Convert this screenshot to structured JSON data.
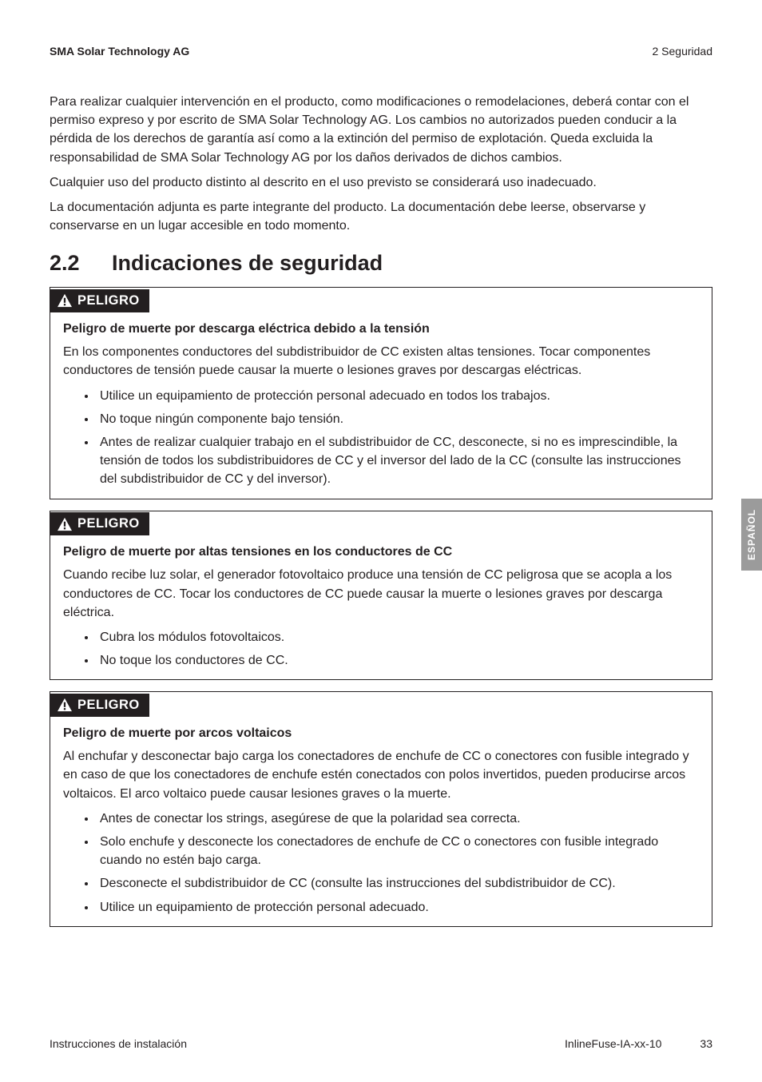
{
  "header": {
    "left": "SMA Solar Technology AG",
    "right": "2  Seguridad"
  },
  "intro": {
    "p1": "Para realizar cualquier intervención en el producto, como modificaciones o remodelaciones, deberá contar con el permiso expreso y por escrito de SMA Solar Technology AG. Los cambios no autorizados pueden conducir a la pérdida de los derechos de garantía así como a la extinción del permiso de explotación. Queda excluida la responsabilidad de SMA Solar Technology AG por los daños derivados de dichos cambios.",
    "p2": "Cualquier uso del producto distinto al descrito en el uso previsto se considerará uso inadecuado.",
    "p3": "La documentación adjunta es parte integrante del producto. La documentación debe leerse, observarse y conservarse en un lugar accesible en todo momento."
  },
  "section": {
    "number": "2.2",
    "title": "Indicaciones de seguridad"
  },
  "alerts": [
    {
      "badge": "PELIGRO",
      "title": "Peligro de muerte por descarga eléctrica debido a la tensión",
      "body": "En los componentes conductores del subdistribuidor de CC existen altas tensiones. Tocar componentes conductores de tensión puede causar la muerte o lesiones graves por descargas eléctricas.",
      "items": [
        "Utilice un equipamiento de protección personal adecuado en todos los trabajos.",
        "No toque ningún componente bajo tensión.",
        "Antes de realizar cualquier trabajo en el subdistribuidor de CC, desconecte, si no es imprescindible, la tensión de todos los subdistribuidores de CC y el inversor del lado de la CC (consulte las instrucciones del subdistribuidor de CC y del inversor)."
      ]
    },
    {
      "badge": "PELIGRO",
      "title": "Peligro de muerte por altas tensiones en los conductores de CC",
      "body": "Cuando recibe luz solar, el generador fotovoltaico produce una tensión de CC peligrosa que se acopla a los conductores de CC. Tocar los conductores de CC puede causar la muerte o lesiones graves por descarga eléctrica.",
      "items": [
        "Cubra los módulos fotovoltaicos.",
        "No toque los conductores de CC."
      ]
    },
    {
      "badge": "PELIGRO",
      "title": "Peligro de muerte por arcos voltaicos",
      "body": "Al enchufar y desconectar bajo carga los conectadores de enchufe de CC o conectores con fusible integrado y en caso de que los conectadores de enchufe estén conectados con polos invertidos, pueden producirse arcos voltaicos. El arco voltaico puede causar lesiones graves o la muerte.",
      "items": [
        "Antes de conectar los strings, asegúrese de que la polaridad sea correcta.",
        "Solo enchufe y desconecte los conectadores de enchufe de CC o conectores con fusible integrado cuando no estén bajo carga.",
        "Desconecte el subdistribuidor de CC (consulte las instrucciones del subdistribuidor de CC).",
        "Utilice un equipamiento de protección personal adecuado."
      ]
    }
  ],
  "side_tab": "ESPAÑOL",
  "footer": {
    "left": "Instrucciones de instalación",
    "doc_id": "InlineFuse-IA-xx-10",
    "page_no": "33"
  }
}
